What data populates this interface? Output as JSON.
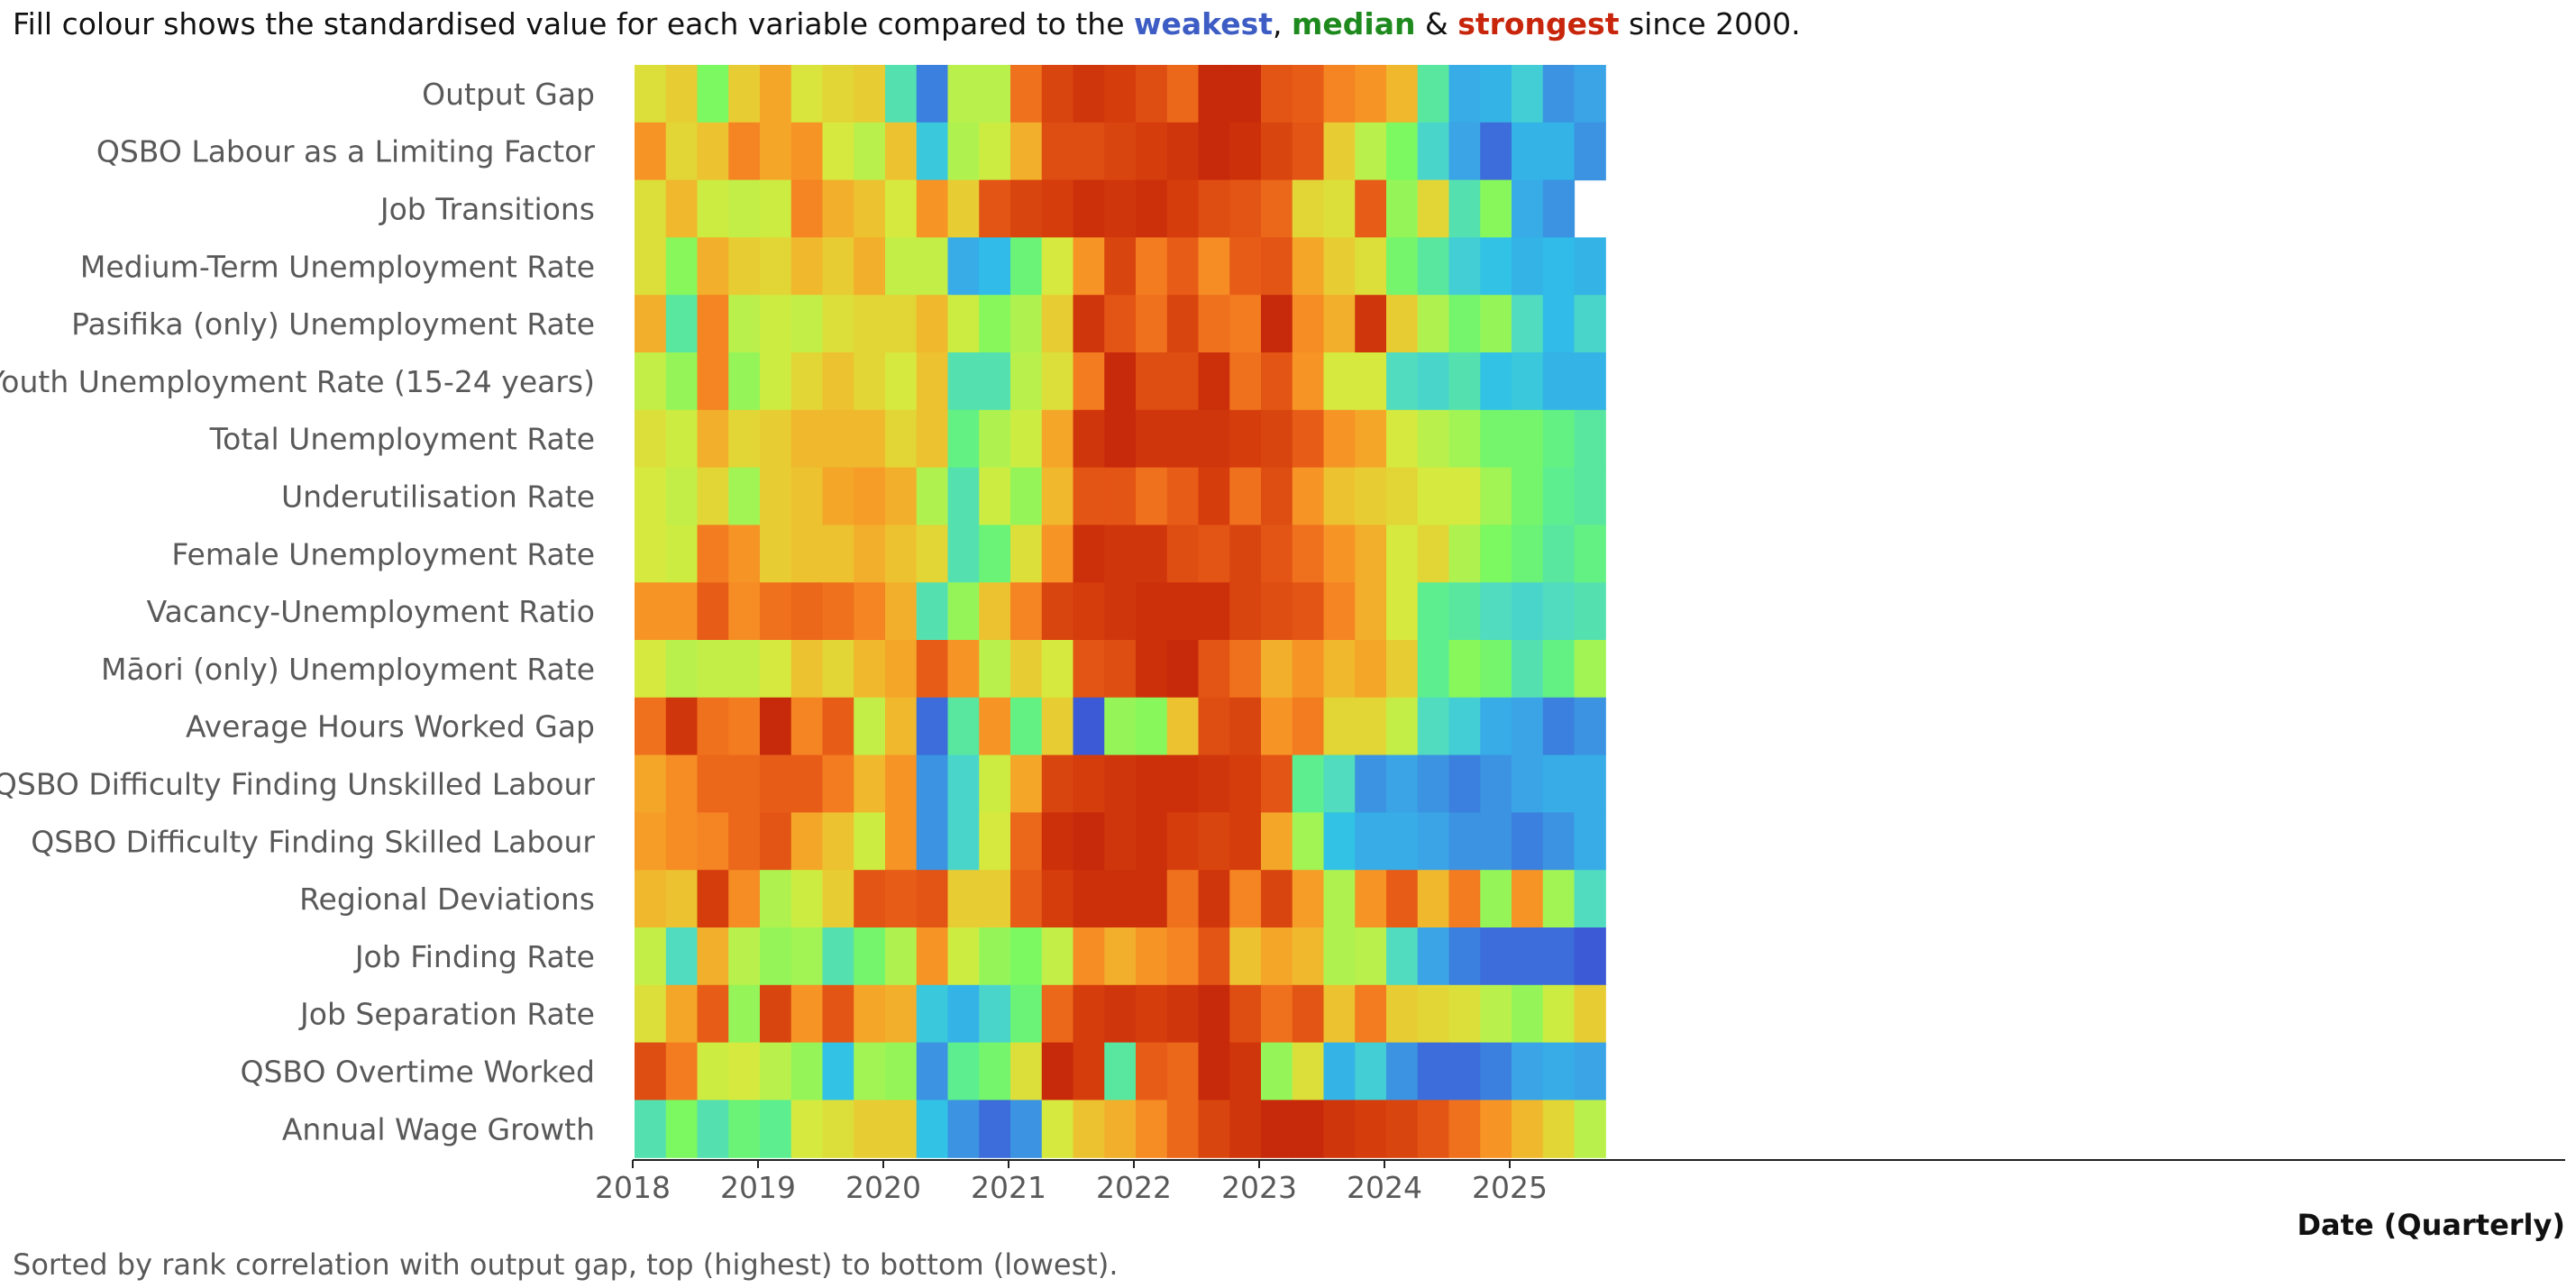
{
  "chart_data": {
    "type": "heatmap",
    "title": {
      "prefix": "Fill colour shows the standardised value for each variable compared to the ",
      "weakest": "weakest",
      "sep1": ", ",
      "median": "median",
      "sep2": " & ",
      "strongest": "strongest",
      "suffix": " since 2000."
    },
    "xlabel": "Date (Quarterly)",
    "footnote": "Sorted by rank correlation with output gap, top (highest) to bottom (lowest).",
    "x_tick_labels": [
      "2018",
      "2019",
      "2020",
      "2021",
      "2022",
      "2023",
      "2024",
      "2025"
    ],
    "x_start": "2018 Q1",
    "x_end": "2025 Q4",
    "num_quarters": 32,
    "value_scale": "0 = weakest, 0.5 = median, 1 = strongest (since 2000)",
    "colors": {
      "weakest": "#3d5cc4",
      "median": "#1e8a1e",
      "strongest": "#c8260c",
      "text": "#595959",
      "axis": "#222222",
      "scale": [
        "#3c5ad6",
        "#3ba3e6",
        "#2ec0e8",
        "#4fd8c6",
        "#5ef08a",
        "#7ef85e",
        "#b0f250",
        "#d6ea3e",
        "#ecc430",
        "#f6a028",
        "#f58022",
        "#e65a16",
        "#d43c0c",
        "#c3220a"
      ]
    },
    "rows": [
      {
        "name": "Output Gap",
        "values": [
          0.56,
          0.6,
          0.38,
          0.6,
          0.68,
          0.55,
          0.58,
          0.6,
          0.26,
          0.04,
          0.48,
          0.48,
          0.8,
          0.9,
          0.94,
          0.92,
          0.88,
          0.82,
          0.98,
          0.98,
          0.86,
          0.84,
          0.76,
          0.72,
          0.64,
          0.28,
          0.1,
          0.12,
          0.2,
          0.06,
          0.08,
          null
        ]
      },
      {
        "name": "QSBO Labour as a Limiting Factor",
        "values": [
          0.72,
          0.58,
          0.62,
          0.76,
          0.68,
          0.72,
          0.54,
          0.48,
          0.62,
          0.18,
          0.46,
          0.52,
          0.66,
          0.88,
          0.88,
          0.9,
          0.92,
          0.94,
          0.98,
          0.96,
          0.9,
          0.86,
          0.6,
          0.48,
          0.38,
          0.22,
          0.08,
          0.02,
          0.12,
          0.12,
          0.06,
          null
        ]
      },
      {
        "name": "Job Transitions",
        "values": [
          0.56,
          0.64,
          0.52,
          0.5,
          0.52,
          0.76,
          0.66,
          0.62,
          0.54,
          0.72,
          0.6,
          0.86,
          0.9,
          0.92,
          0.96,
          0.94,
          0.96,
          0.92,
          0.88,
          0.86,
          0.82,
          0.58,
          0.56,
          0.84,
          0.42,
          0.58,
          0.26,
          0.4,
          0.1,
          0.06,
          null,
          null
        ]
      },
      {
        "name": "Medium-Term Unemployment Rate",
        "values": [
          0.56,
          0.4,
          0.66,
          0.6,
          0.58,
          0.64,
          0.6,
          0.66,
          0.5,
          0.5,
          0.1,
          0.14,
          0.34,
          0.54,
          0.72,
          0.9,
          0.78,
          0.84,
          0.74,
          0.84,
          0.86,
          0.68,
          0.6,
          0.56,
          0.36,
          0.28,
          0.2,
          0.16,
          0.12,
          0.14,
          0.12,
          null
        ]
      },
      {
        "name": "Pasifika (only) Unemployment Rate",
        "values": [
          0.66,
          0.28,
          0.76,
          0.48,
          0.52,
          0.5,
          0.56,
          0.58,
          0.58,
          0.64,
          0.52,
          0.4,
          0.46,
          0.6,
          0.94,
          0.86,
          0.8,
          0.9,
          0.8,
          0.78,
          0.98,
          0.74,
          0.66,
          0.94,
          0.6,
          0.46,
          0.36,
          0.42,
          0.24,
          0.14,
          0.22,
          null
        ]
      },
      {
        "name": "Youth Unemployment Rate (15-24 years)",
        "values": [
          0.5,
          0.42,
          0.76,
          0.42,
          0.52,
          0.58,
          0.62,
          0.58,
          0.54,
          0.62,
          0.26,
          0.26,
          0.48,
          0.56,
          0.78,
          0.98,
          0.88,
          0.88,
          0.96,
          0.8,
          0.86,
          0.72,
          0.54,
          0.54,
          0.24,
          0.22,
          0.26,
          0.16,
          0.18,
          0.12,
          0.12,
          null
        ]
      },
      {
        "name": "Total Unemployment Rate",
        "values": [
          0.56,
          0.52,
          0.66,
          0.58,
          0.6,
          0.64,
          0.64,
          0.64,
          0.58,
          0.62,
          0.32,
          0.46,
          0.52,
          0.68,
          0.94,
          0.98,
          0.94,
          0.94,
          0.94,
          0.92,
          0.9,
          0.84,
          0.72,
          0.68,
          0.54,
          0.48,
          0.44,
          0.36,
          0.36,
          0.32,
          0.28,
          null
        ]
      },
      {
        "name": "Underutilisation Rate",
        "values": [
          0.54,
          0.5,
          0.58,
          0.44,
          0.6,
          0.62,
          0.68,
          0.7,
          0.66,
          0.46,
          0.26,
          0.52,
          0.42,
          0.64,
          0.86,
          0.86,
          0.8,
          0.84,
          0.92,
          0.8,
          0.88,
          0.72,
          0.62,
          0.6,
          0.58,
          0.54,
          0.54,
          0.44,
          0.36,
          0.3,
          0.28,
          null
        ]
      },
      {
        "name": "Female Unemployment Rate",
        "values": [
          0.54,
          0.52,
          0.78,
          0.72,
          0.6,
          0.62,
          0.62,
          0.66,
          0.62,
          0.58,
          0.26,
          0.34,
          0.56,
          0.72,
          0.96,
          0.94,
          0.94,
          0.88,
          0.86,
          0.9,
          0.86,
          0.8,
          0.72,
          0.66,
          0.54,
          0.58,
          0.46,
          0.38,
          0.34,
          0.28,
          0.32,
          null
        ]
      },
      {
        "name": "Vacancy-Unemployment Ratio",
        "values": [
          0.72,
          0.72,
          0.84,
          0.74,
          0.8,
          0.82,
          0.8,
          0.76,
          0.66,
          0.26,
          0.42,
          0.62,
          0.76,
          0.9,
          0.92,
          0.94,
          0.96,
          0.96,
          0.96,
          0.9,
          0.88,
          0.86,
          0.76,
          0.66,
          0.54,
          0.3,
          0.28,
          0.24,
          0.22,
          0.24,
          0.26,
          null
        ]
      },
      {
        "name": "Māori (only) Unemployment Rate",
        "values": [
          0.54,
          0.48,
          0.5,
          0.5,
          0.54,
          0.62,
          0.58,
          0.64,
          0.68,
          0.84,
          0.72,
          0.48,
          0.6,
          0.54,
          0.86,
          0.88,
          0.96,
          0.98,
          0.86,
          0.8,
          0.66,
          0.72,
          0.64,
          0.68,
          0.6,
          0.3,
          0.4,
          0.36,
          0.26,
          0.32,
          0.44,
          null
        ]
      },
      {
        "name": "Average Hours Worked Gap",
        "values": [
          0.8,
          0.94,
          0.8,
          0.78,
          0.98,
          0.76,
          0.84,
          0.5,
          0.64,
          0.02,
          0.28,
          0.72,
          0.32,
          0.6,
          0.0,
          0.42,
          0.4,
          0.62,
          0.88,
          0.9,
          0.72,
          0.78,
          0.58,
          0.58,
          0.5,
          0.24,
          0.2,
          0.1,
          0.08,
          0.04,
          0.06,
          null
        ]
      },
      {
        "name": "QSBO Difficulty Finding Unskilled Labour",
        "values": [
          0.68,
          0.74,
          0.82,
          0.82,
          0.84,
          0.84,
          0.78,
          0.64,
          0.72,
          0.06,
          0.22,
          0.52,
          0.68,
          0.9,
          0.92,
          0.94,
          0.96,
          0.96,
          0.94,
          0.92,
          0.86,
          0.3,
          0.24,
          0.06,
          0.08,
          0.06,
          0.04,
          0.06,
          0.08,
          0.1,
          0.1,
          null
        ]
      },
      {
        "name": "QSBO Difficulty Finding Skilled Labour",
        "values": [
          0.7,
          0.74,
          0.76,
          0.82,
          0.86,
          0.68,
          0.62,
          0.52,
          0.72,
          0.06,
          0.22,
          0.54,
          0.82,
          0.96,
          0.98,
          0.94,
          0.96,
          0.92,
          0.9,
          0.92,
          0.68,
          0.44,
          0.16,
          0.1,
          0.1,
          0.08,
          0.06,
          0.06,
          0.04,
          0.06,
          0.1,
          null
        ]
      },
      {
        "name": "Regional Deviations",
        "values": [
          0.64,
          0.62,
          0.92,
          0.74,
          0.46,
          0.52,
          0.6,
          0.86,
          0.84,
          0.86,
          0.6,
          0.6,
          0.84,
          0.92,
          0.96,
          0.96,
          0.96,
          0.8,
          0.94,
          0.76,
          0.9,
          0.7,
          0.46,
          0.72,
          0.84,
          0.64,
          0.78,
          0.42,
          0.72,
          0.44,
          0.24,
          null
        ]
      },
      {
        "name": "Job Finding Rate",
        "values": [
          0.5,
          0.24,
          0.66,
          0.48,
          0.42,
          0.44,
          0.26,
          0.36,
          0.46,
          0.72,
          0.52,
          0.42,
          0.38,
          0.5,
          0.74,
          0.66,
          0.72,
          0.76,
          0.86,
          0.62,
          0.68,
          0.64,
          0.46,
          0.48,
          0.24,
          0.08,
          0.04,
          0.02,
          0.02,
          0.02,
          0.0,
          null
        ]
      },
      {
        "name": "Job Separation Rate",
        "values": [
          0.56,
          0.68,
          0.84,
          0.42,
          0.9,
          0.72,
          0.86,
          0.68,
          0.66,
          0.18,
          0.12,
          0.22,
          0.34,
          0.82,
          0.92,
          0.94,
          0.92,
          0.94,
          0.98,
          0.88,
          0.8,
          0.86,
          0.62,
          0.78,
          0.6,
          0.58,
          0.56,
          0.48,
          0.42,
          0.52,
          0.6,
          null
        ]
      },
      {
        "name": "QSBO Overtime Worked",
        "values": [
          0.88,
          0.78,
          0.52,
          0.54,
          0.48,
          0.42,
          0.16,
          0.44,
          0.42,
          0.06,
          0.3,
          0.36,
          0.56,
          0.98,
          0.92,
          0.28,
          0.84,
          0.82,
          0.98,
          0.94,
          0.42,
          0.56,
          0.12,
          0.2,
          0.06,
          0.02,
          0.02,
          0.04,
          0.08,
          0.1,
          0.08,
          null
        ]
      },
      {
        "name": "Annual Wage Growth",
        "values": [
          0.26,
          0.38,
          0.26,
          0.34,
          0.3,
          0.54,
          0.56,
          0.6,
          0.6,
          0.16,
          0.06,
          0.02,
          0.06,
          0.54,
          0.62,
          0.66,
          0.74,
          0.82,
          0.9,
          0.94,
          0.98,
          0.98,
          0.94,
          0.92,
          0.9,
          0.86,
          0.8,
          0.72,
          0.64,
          0.58,
          0.48,
          null
        ]
      }
    ]
  }
}
